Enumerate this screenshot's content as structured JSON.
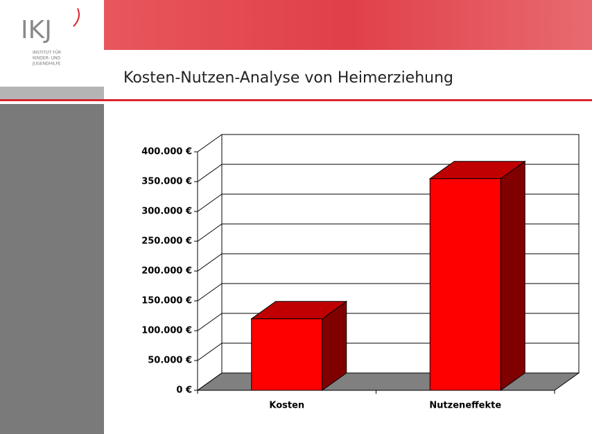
{
  "logo": {
    "mark": "IKJ",
    "lines": [
      "INSTITUT FÜR",
      "KINDER- UND",
      "JUGENDHILFE"
    ]
  },
  "slide_title": "Kosten-Nutzen-Analyse von Heimerziehung",
  "chart_data": {
    "type": "bar3d",
    "categories": [
      "Kosten",
      "Nutzeneffekte"
    ],
    "values": [
      120000,
      355000
    ],
    "colors": {
      "front": "#ff0000",
      "top": "#c00000",
      "side": "#800000",
      "floor": "#808080"
    },
    "ylim": [
      0,
      400000
    ],
    "yticks": [
      {
        "value": 0,
        "label": "0 €"
      },
      {
        "value": 50000,
        "label": "50.000 €"
      },
      {
        "value": 100000,
        "label": "100.000 €"
      },
      {
        "value": 150000,
        "label": "150.000 €"
      },
      {
        "value": 200000,
        "label": "200.000 €"
      },
      {
        "value": 250000,
        "label": "250.000 €"
      },
      {
        "value": 300000,
        "label": "300.000 €"
      },
      {
        "value": 350000,
        "label": "350.000 €"
      },
      {
        "value": 400000,
        "label": "400.000 €"
      }
    ],
    "grid": true
  }
}
